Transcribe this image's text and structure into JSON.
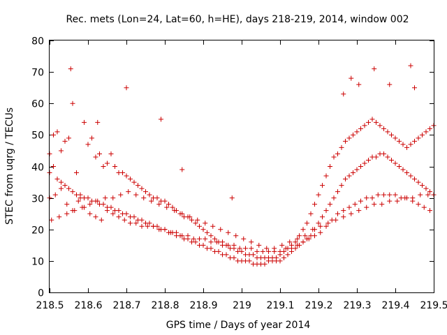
{
  "chart_data": {
    "type": "scatter",
    "title": "Rec. mets (Lon=24, Lat=60, h=HE), days 218-219, 2014, window 002",
    "xlabel": "GPS time / Days of year 2014",
    "ylabel": "STEC from uqrg / TECUs",
    "xlim": [
      218.5,
      219.5
    ],
    "ylim": [
      0,
      80
    ],
    "xticks": [
      "218.5",
      "218.6",
      "218.7",
      "218.8",
      "218.9",
      "219",
      "219.1",
      "219.2",
      "219.3",
      "219.4",
      "219.5"
    ],
    "yticks": [
      "0",
      "10",
      "20",
      "30",
      "40",
      "50",
      "60",
      "70",
      "80"
    ],
    "grid": false,
    "marker": "+",
    "color": "#cc0000",
    "x": [
      218.5,
      218.51,
      218.52,
      218.53,
      218.54,
      218.55,
      218.56,
      218.57,
      218.58,
      218.59,
      218.6,
      218.61,
      218.62,
      218.63,
      218.64,
      218.65,
      218.66,
      218.67,
      218.68,
      218.69,
      218.7,
      218.71,
      218.72,
      218.73,
      218.74,
      218.75,
      218.76,
      218.77,
      218.78,
      218.79,
      218.8,
      218.81,
      218.82,
      218.83,
      218.84,
      218.85,
      218.86,
      218.87,
      218.88,
      218.89,
      218.9,
      218.91,
      218.92,
      218.93,
      218.94,
      218.95,
      218.96,
      218.97,
      218.98,
      218.99,
      219.0,
      219.01,
      219.02,
      219.03,
      219.04,
      219.05,
      219.06,
      219.07,
      219.08,
      219.09,
      219.1,
      219.11,
      219.12,
      219.13,
      219.14,
      219.15,
      219.16,
      219.17,
      219.18,
      219.19,
      219.2,
      219.21,
      219.22,
      219.23,
      219.24,
      219.25,
      219.26,
      219.27,
      219.28,
      219.29,
      219.3,
      219.31,
      219.32,
      219.33,
      219.34,
      219.35,
      219.36,
      219.37,
      219.38,
      219.39,
      219.4,
      219.41,
      219.42,
      219.43,
      219.44,
      219.45,
      219.46,
      219.47,
      219.48,
      219.49,
      219.5,
      218.5,
      218.51,
      218.52,
      218.53,
      218.54,
      218.55,
      218.56,
      218.57,
      218.58,
      218.59,
      218.6,
      218.61,
      218.62,
      218.63,
      218.64,
      218.65,
      218.66,
      218.67,
      218.68,
      218.69,
      218.7,
      218.71,
      218.72,
      218.73,
      218.74,
      218.75,
      218.76,
      218.77,
      218.78,
      218.79,
      218.8,
      218.81,
      218.82,
      218.83,
      218.84,
      218.85,
      218.86,
      218.87,
      218.88,
      218.89,
      218.9,
      218.91,
      218.92,
      218.93,
      218.94,
      218.95,
      218.96,
      218.97,
      218.98,
      218.99,
      219.0,
      219.01,
      219.02,
      219.03,
      219.04,
      219.05,
      219.06,
      219.07,
      219.08,
      219.09,
      219.1,
      219.11,
      219.12,
      219.13,
      219.14,
      219.15,
      219.16,
      219.17,
      219.18,
      219.19,
      219.2,
      219.21,
      219.22,
      219.23,
      219.24,
      219.25,
      219.26,
      219.27,
      219.28,
      219.29,
      219.3,
      219.31,
      219.32,
      219.33,
      219.34,
      219.35,
      219.36,
      219.37,
      219.38,
      219.39,
      219.4,
      219.41,
      219.42,
      219.43,
      219.44,
      219.45,
      219.46,
      219.47,
      219.48,
      219.49,
      219.5,
      218.5,
      218.515,
      218.53,
      218.545,
      218.56,
      218.575,
      218.59,
      218.605,
      218.62,
      218.635,
      218.65,
      218.665,
      218.68,
      218.695,
      218.71,
      218.725,
      218.74,
      218.755,
      218.77,
      218.785,
      218.8,
      218.815,
      218.83,
      218.845,
      218.86,
      218.875,
      218.89,
      218.905,
      218.92,
      218.935,
      218.95,
      218.965,
      218.98,
      218.995,
      219.01,
      219.025,
      219.04,
      219.055,
      219.07,
      219.085,
      219.1,
      219.115,
      219.13,
      219.145,
      219.16,
      219.175,
      219.19,
      219.205,
      219.22,
      219.235,
      219.25,
      219.265,
      219.28,
      219.295,
      219.31,
      219.325,
      219.34,
      219.355,
      219.37,
      219.385,
      219.4,
      219.415,
      219.43,
      219.445,
      219.46,
      219.475,
      219.49,
      218.505,
      218.525,
      218.545,
      218.565,
      218.585,
      218.605,
      218.625,
      218.645,
      218.665,
      218.685,
      218.705,
      218.725,
      218.745,
      218.765,
      218.785,
      218.805,
      218.825,
      218.845,
      218.865,
      218.885,
      218.905,
      218.925,
      218.945,
      218.965,
      218.985,
      219.005,
      219.025,
      219.045,
      219.065,
      219.085,
      219.105,
      219.125,
      219.145,
      219.165,
      219.185,
      219.205,
      219.225,
      219.245,
      219.265,
      219.285,
      219.305,
      219.325,
      219.345,
      219.365,
      219.385,
      219.405,
      219.425,
      219.445,
      219.465,
      219.485,
      218.555,
      218.7,
      218.625,
      218.79,
      218.845,
      218.975,
      219.285,
      219.345,
      219.305,
      219.265,
      219.385,
      219.44,
      219.45
    ],
    "y": [
      44,
      50,
      51,
      45,
      48,
      49,
      60,
      38,
      30,
      54,
      47,
      49,
      43,
      44,
      40,
      41,
      44,
      40,
      38,
      38,
      37,
      36,
      35,
      34,
      33,
      32,
      31,
      30,
      30,
      29,
      29,
      28,
      27,
      26,
      25,
      24,
      24,
      23,
      22,
      21,
      20,
      19,
      18,
      17,
      16,
      15,
      15,
      14,
      14,
      13,
      13,
      12,
      12,
      12,
      11,
      11,
      11,
      11,
      11,
      11,
      12,
      13,
      14,
      15,
      16,
      18,
      20,
      22,
      25,
      28,
      31,
      34,
      37,
      40,
      43,
      44,
      46,
      48,
      49,
      50,
      51,
      52,
      53,
      54,
      55,
      54,
      53,
      52,
      51,
      50,
      49,
      48,
      47,
      46,
      47,
      48,
      49,
      50,
      51,
      52,
      53,
      38,
      40,
      36,
      35,
      34,
      33,
      32,
      31,
      31,
      30,
      30,
      29,
      29,
      28,
      28,
      27,
      27,
      26,
      26,
      25,
      25,
      24,
      24,
      23,
      23,
      22,
      22,
      21,
      21,
      20,
      20,
      19,
      19,
      18,
      18,
      17,
      17,
      16,
      16,
      15,
      15,
      14,
      14,
      13,
      13,
      12,
      12,
      11,
      11,
      10,
      10,
      10,
      10,
      9,
      9,
      9,
      9,
      10,
      10,
      10,
      10,
      11,
      12,
      13,
      14,
      15,
      16,
      17,
      18,
      20,
      22,
      24,
      26,
      28,
      30,
      32,
      34,
      36,
      37,
      38,
      39,
      40,
      41,
      42,
      43,
      43,
      44,
      44,
      43,
      42,
      41,
      40,
      39,
      38,
      37,
      36,
      35,
      34,
      33,
      32,
      31,
      30,
      31,
      33,
      28,
      26,
      29,
      27,
      25,
      24,
      23,
      26,
      25,
      24,
      23,
      22,
      22,
      21,
      21,
      21,
      20,
      20,
      19,
      19,
      18,
      18,
      17,
      17,
      17,
      16,
      16,
      16,
      15,
      15,
      14,
      14,
      14,
      13,
      13,
      13,
      13,
      13,
      14,
      14,
      15,
      16,
      17,
      18,
      19,
      21,
      23,
      25,
      26,
      27,
      28,
      29,
      30,
      30,
      31,
      31,
      31,
      31,
      30,
      30,
      29,
      28,
      27,
      26,
      23,
      24,
      25,
      26,
      27,
      28,
      29,
      30,
      30,
      31,
      32,
      31,
      30,
      29,
      28,
      27,
      26,
      25,
      24,
      23,
      22,
      21,
      20,
      19,
      18,
      17,
      16,
      15,
      14,
      14,
      15,
      16,
      17,
      18,
      20,
      21,
      22,
      23,
      24,
      25,
      26,
      27,
      28,
      28,
      29,
      29,
      30,
      30,
      31,
      31,
      71,
      65,
      54,
      55,
      39,
      30,
      68,
      71,
      66,
      63,
      66,
      72,
      65
    ]
  }
}
